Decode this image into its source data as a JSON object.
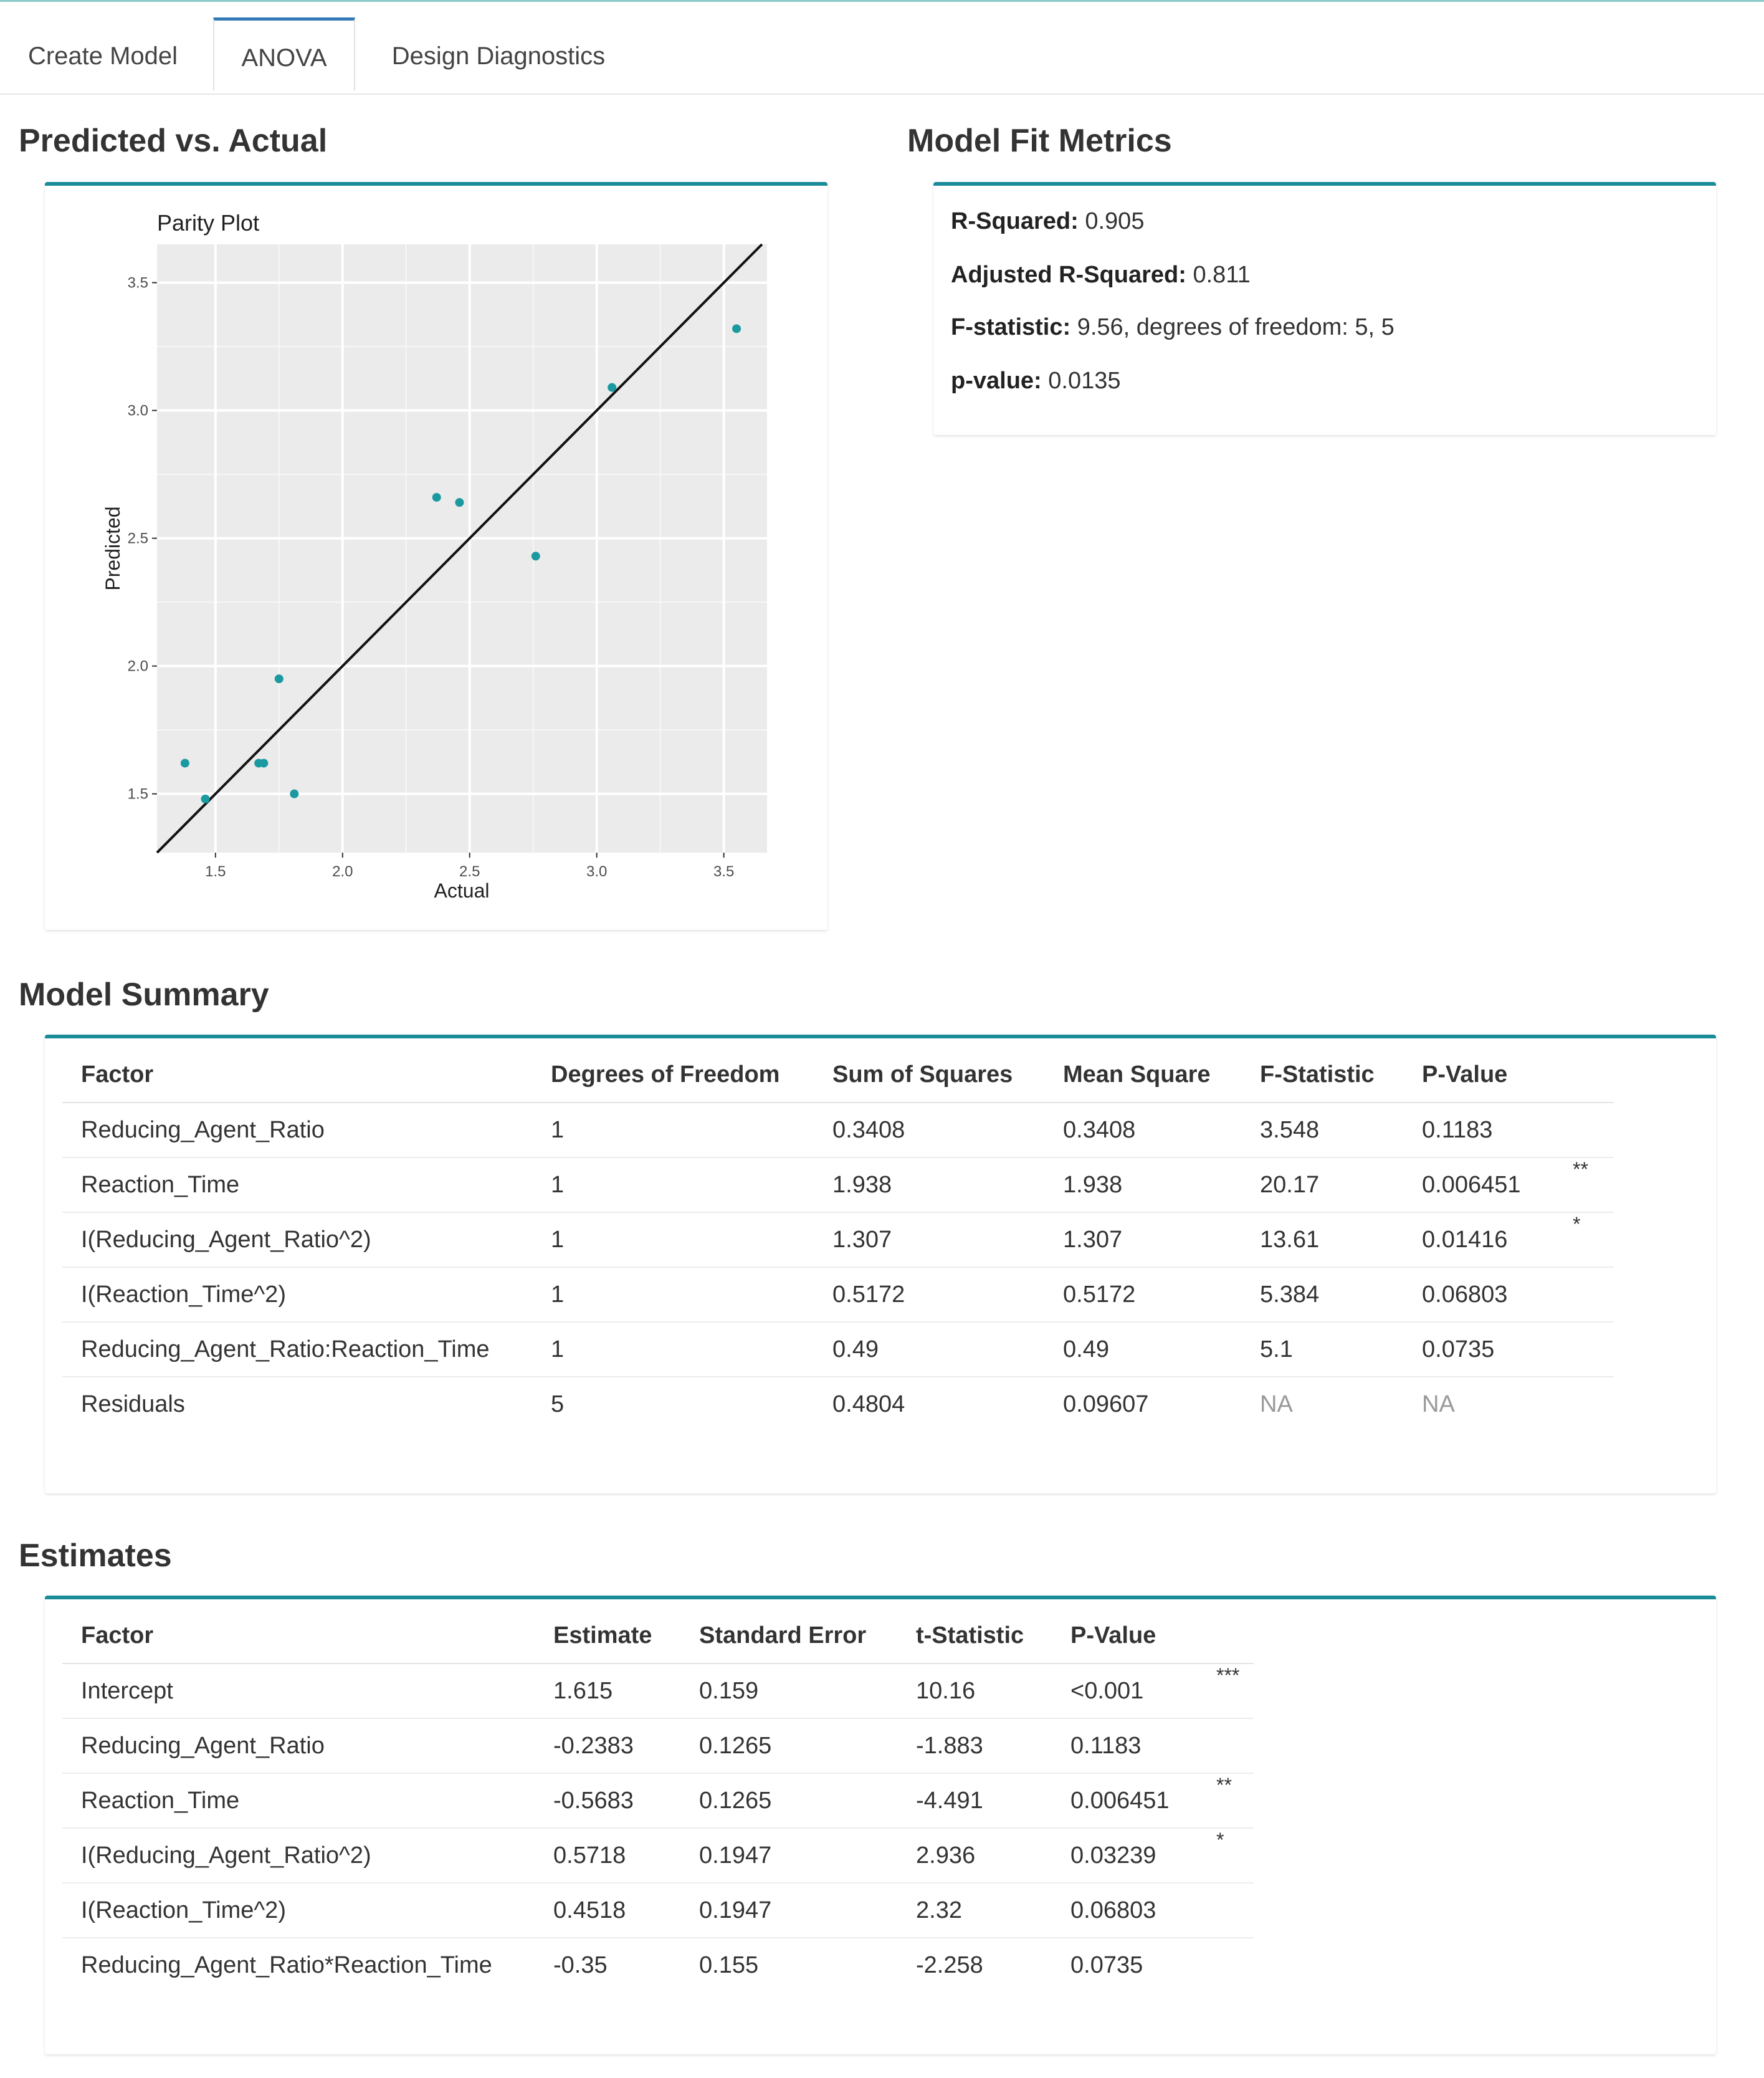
{
  "tabs": [
    {
      "label": "Create Model"
    },
    {
      "label": "ANOVA"
    },
    {
      "label": "Design Diagnostics"
    }
  ],
  "predicted_vs_actual": {
    "heading": "Predicted vs. Actual"
  },
  "model_fit": {
    "heading": "Model Fit Metrics",
    "r_squared_label": "R-Squared:",
    "r_squared_value": "0.905",
    "adj_r_squared_label": "Adjusted R-Squared:",
    "adj_r_squared_value": "0.811",
    "f_stat_label": "F-statistic:",
    "f_stat_value": "9.56, degrees of freedom: 5, 5",
    "p_value_label": "p-value:",
    "p_value_value": "0.0135"
  },
  "chart_data": {
    "type": "scatter",
    "title": "Parity Plot",
    "xlabel": "Actual",
    "ylabel": "Predicted",
    "xlim": [
      1.27,
      3.67
    ],
    "ylim": [
      1.27,
      3.65
    ],
    "xticks": [
      "1.5",
      "2.0",
      "2.5",
      "3.0",
      "3.5"
    ],
    "yticks": [
      "1.5",
      "2.0",
      "2.5",
      "3.0",
      "3.5"
    ],
    "reference_line": "y = x",
    "grid": true,
    "point_color": "#1a9aa0",
    "x": [
      1.38,
      1.46,
      1.67,
      1.69,
      1.75,
      1.81,
      2.37,
      2.46,
      2.76,
      3.06,
      3.55
    ],
    "y": [
      1.62,
      1.48,
      1.62,
      1.62,
      1.95,
      1.5,
      2.66,
      2.64,
      2.43,
      3.09,
      3.32
    ]
  },
  "model_summary": {
    "heading": "Model Summary",
    "columns": [
      "Factor",
      "Degrees of Freedom",
      "Sum of Squares",
      "Mean Square",
      "F-Statistic",
      "P-Value"
    ],
    "rows": [
      [
        "Reducing_Agent_Ratio",
        "1",
        "0.3408",
        "0.3408",
        "3.548",
        "0.1183",
        ""
      ],
      [
        "Reaction_Time",
        "1",
        "1.938",
        "1.938",
        "20.17",
        "0.006451",
        "**"
      ],
      [
        "I(Reducing_Agent_Ratio^2)",
        "1",
        "1.307",
        "1.307",
        "13.61",
        "0.01416",
        "*"
      ],
      [
        "I(Reaction_Time^2)",
        "1",
        "0.5172",
        "0.5172",
        "5.384",
        "0.06803",
        ""
      ],
      [
        "Reducing_Agent_Ratio:Reaction_Time",
        "1",
        "0.49",
        "0.49",
        "5.1",
        "0.0735",
        ""
      ],
      [
        "Residuals",
        "5",
        "0.4804",
        "0.09607",
        "NA",
        "NA",
        ""
      ]
    ]
  },
  "estimates": {
    "heading": "Estimates",
    "columns": [
      "Factor",
      "Estimate",
      "Standard Error",
      "t-Statistic",
      "P-Value"
    ],
    "rows": [
      [
        "Intercept",
        "1.615",
        "0.159",
        "10.16",
        "<0.001",
        "***"
      ],
      [
        "Reducing_Agent_Ratio",
        "-0.2383",
        "0.1265",
        "-1.883",
        "0.1183",
        ""
      ],
      [
        "Reaction_Time",
        "-0.5683",
        "0.1265",
        "-4.491",
        "0.006451",
        "**"
      ],
      [
        "I(Reducing_Agent_Ratio^2)",
        "0.5718",
        "0.1947",
        "2.936",
        "0.03239",
        "*"
      ],
      [
        "I(Reaction_Time^2)",
        "0.4518",
        "0.1947",
        "2.32",
        "0.06803",
        ""
      ],
      [
        "Reducing_Agent_Ratio*Reaction_Time",
        "-0.35",
        "0.155",
        "-2.258",
        "0.0735",
        ""
      ]
    ]
  }
}
